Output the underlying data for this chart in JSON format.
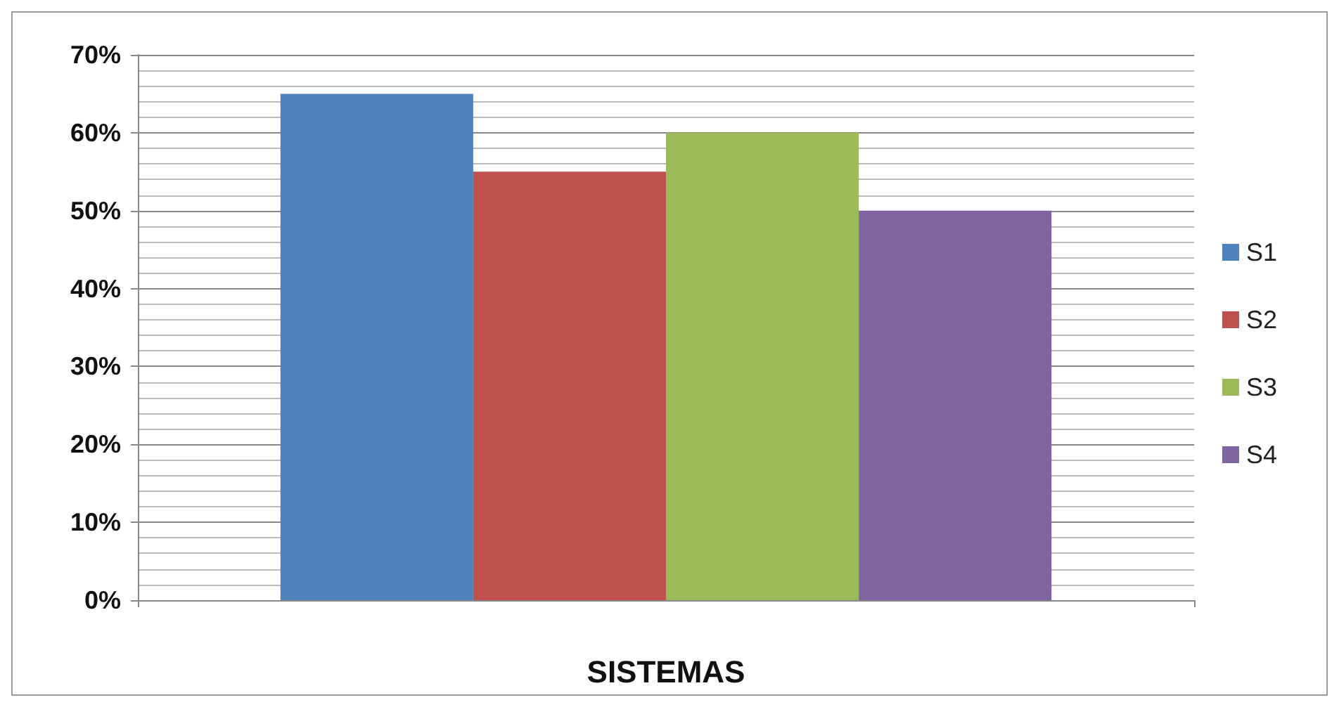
{
  "chart_data": {
    "type": "bar",
    "xlabel": "SISTEMAS",
    "categories": [
      null
    ],
    "series": [
      {
        "name": "S1",
        "color": "#4f81bd",
        "values": [
          65
        ]
      },
      {
        "name": "S2",
        "color": "#c0504d",
        "values": [
          55
        ]
      },
      {
        "name": "S3",
        "color": "#9bbb59",
        "values": [
          60
        ]
      },
      {
        "name": "S4",
        "color": "#8064a2",
        "values": [
          50
        ]
      }
    ],
    "ylim": [
      0,
      70
    ],
    "yticks": [
      {
        "value": 0,
        "label": "0%"
      },
      {
        "value": 10,
        "label": "10%"
      },
      {
        "value": 20,
        "label": "20%"
      },
      {
        "value": 30,
        "label": "30%"
      },
      {
        "value": 40,
        "label": "40%"
      },
      {
        "value": 50,
        "label": "50%"
      },
      {
        "value": 60,
        "label": "60%"
      },
      {
        "value": 70,
        "label": "70%"
      }
    ],
    "grid": true,
    "legend": "right"
  }
}
